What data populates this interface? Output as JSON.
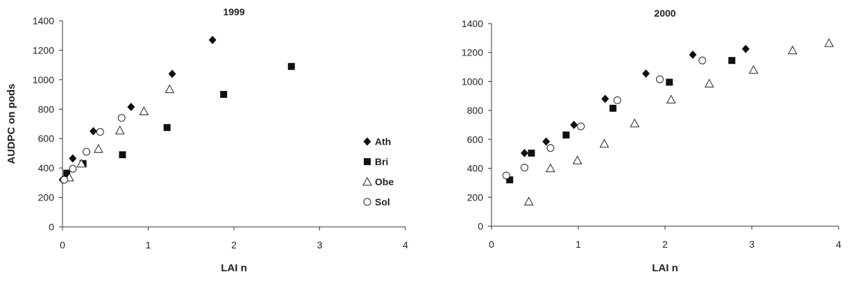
{
  "chart_data": [
    {
      "type": "scatter",
      "title": "1999",
      "xlabel": "LAI n",
      "ylabel": "AUDPC on pods",
      "xlim": [
        0,
        4
      ],
      "ylim": [
        0,
        1400
      ],
      "xticks": [
        0,
        1,
        2,
        3,
        4
      ],
      "yticks": [
        0,
        200,
        400,
        600,
        800,
        1000,
        1200,
        1400
      ],
      "legend_position": "right",
      "series": [
        {
          "name": "Ath",
          "marker": "filled-diamond",
          "x": [
            0.0,
            0.12,
            0.36,
            0.8,
            1.28,
            1.75
          ],
          "y": [
            320,
            465,
            650,
            815,
            1040,
            1270
          ]
        },
        {
          "name": "Bri",
          "marker": "filled-square",
          "x": [
            0.05,
            0.24,
            0.7,
            1.22,
            1.88,
            2.67
          ],
          "y": [
            365,
            430,
            490,
            675,
            900,
            1090
          ]
        },
        {
          "name": "Obe",
          "marker": "open-triangle",
          "x": [
            0.08,
            0.22,
            0.42,
            0.67,
            0.95,
            1.25
          ],
          "y": [
            335,
            430,
            530,
            655,
            785,
            935
          ]
        },
        {
          "name": "Sol",
          "marker": "open-circle",
          "x": [
            0.02,
            0.12,
            0.28,
            0.69,
            0.44
          ],
          "y": [
            320,
            395,
            510,
            740,
            645
          ]
        }
      ]
    },
    {
      "type": "scatter",
      "title": "2000",
      "xlabel": "LAI n",
      "ylabel": "",
      "xlim": [
        0,
        4
      ],
      "ylim": [
        0,
        1400
      ],
      "xticks": [
        0,
        1,
        2,
        3,
        4
      ],
      "yticks": [
        0,
        200,
        400,
        600,
        800,
        1000,
        1200,
        1400
      ],
      "series": [
        {
          "name": "Ath",
          "marker": "filled-diamond",
          "x": [
            0.38,
            0.63,
            0.95,
            1.31,
            1.78,
            2.32,
            2.93
          ],
          "y": [
            505,
            585,
            700,
            880,
            1055,
            1185,
            1225
          ]
        },
        {
          "name": "Bri",
          "marker": "filled-square",
          "x": [
            0.21,
            0.46,
            0.86,
            1.4,
            2.05,
            2.77
          ],
          "y": [
            320,
            505,
            630,
            815,
            995,
            1145
          ]
        },
        {
          "name": "Obe",
          "marker": "open-triangle",
          "x": [
            0.43,
            0.68,
            0.99,
            1.3,
            1.65,
            2.07,
            2.51,
            3.02,
            3.47,
            3.89
          ],
          "y": [
            170,
            400,
            455,
            570,
            710,
            875,
            985,
            1080,
            1215,
            1265
          ]
        },
        {
          "name": "Sol",
          "marker": "open-circle",
          "x": [
            0.17,
            0.38,
            0.68,
            1.03,
            1.45,
            1.94,
            2.43
          ],
          "y": [
            350,
            405,
            540,
            690,
            870,
            1015,
            1145
          ]
        }
      ]
    }
  ]
}
